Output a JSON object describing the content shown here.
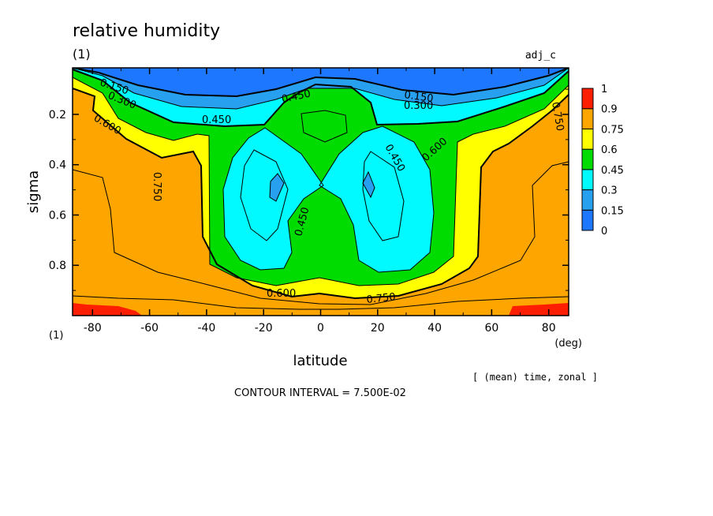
{
  "chart_data": {
    "type": "heatmap",
    "title": "relative humidity",
    "panel_label": "(1)",
    "axis_panel_label": "(1)",
    "experiment": "adj_c",
    "xlabel": "latitude",
    "x_unit": "(deg)",
    "ylabel": "sigma",
    "xlim": [
      -87,
      87
    ],
    "ylim": [
      1.0,
      0.015
    ],
    "x_ticks": [
      -80,
      -60,
      -40,
      -20,
      0,
      20,
      40,
      60,
      80
    ],
    "x_tick_labels": [
      "-80",
      "-60",
      "-40",
      "-20",
      "0",
      "20",
      "40",
      "60",
      "80"
    ],
    "y_ticks": [
      0.2,
      0.4,
      0.6,
      0.8
    ],
    "y_tick_labels": [
      "0.2",
      "0.4",
      "0.6",
      "0.8"
    ],
    "averaging": "[ (mean) time, zonal ]",
    "contour_interval_text": "CONTOUR INTERVAL = 7.500E-02",
    "contour_interval": 0.075,
    "contour_labels": [
      "0.150",
      "0.300",
      "0.450",
      "0.600",
      "0.750"
    ],
    "colorbar": {
      "levels": [
        0,
        0.15,
        0.3,
        0.45,
        0.6,
        0.75,
        0.9,
        1
      ],
      "level_labels": [
        "0",
        "0.15",
        "0.3",
        "0.45",
        "0.6",
        "0.75",
        "0.9",
        "1"
      ],
      "colors": [
        "#1e78ff",
        "#28a0f0",
        "#00faff",
        "#00dc00",
        "#ffff00",
        "#ffa500",
        "#ff1e00"
      ]
    },
    "grid": false
  }
}
